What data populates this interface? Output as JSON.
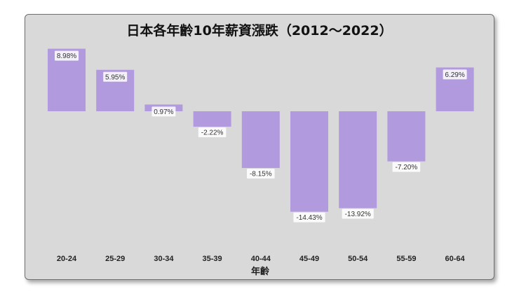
{
  "chart_data": {
    "type": "bar",
    "title": "日本各年齡10年薪資漲跌（2012～2022）",
    "xlabel": "年齡",
    "ylabel": "",
    "categories": [
      "20-24",
      "25-29",
      "30-34",
      "35-39",
      "40-44",
      "45-49",
      "50-54",
      "55-59",
      "60-64"
    ],
    "values": [
      8.98,
      5.95,
      0.97,
      -2.22,
      -8.15,
      -14.43,
      -13.92,
      -7.2,
      6.29
    ],
    "data_labels": [
      "8.98%",
      "5.95%",
      "0.97%",
      "-2.22%",
      "-8.15%",
      "-14.43%",
      "-13.92%",
      "-7.20%",
      "6.29%"
    ],
    "ylim": [
      -16,
      10
    ],
    "grid": false,
    "legend": "none",
    "colors": {
      "bar": "#b19ade",
      "background": "#d9d9d9"
    }
  }
}
